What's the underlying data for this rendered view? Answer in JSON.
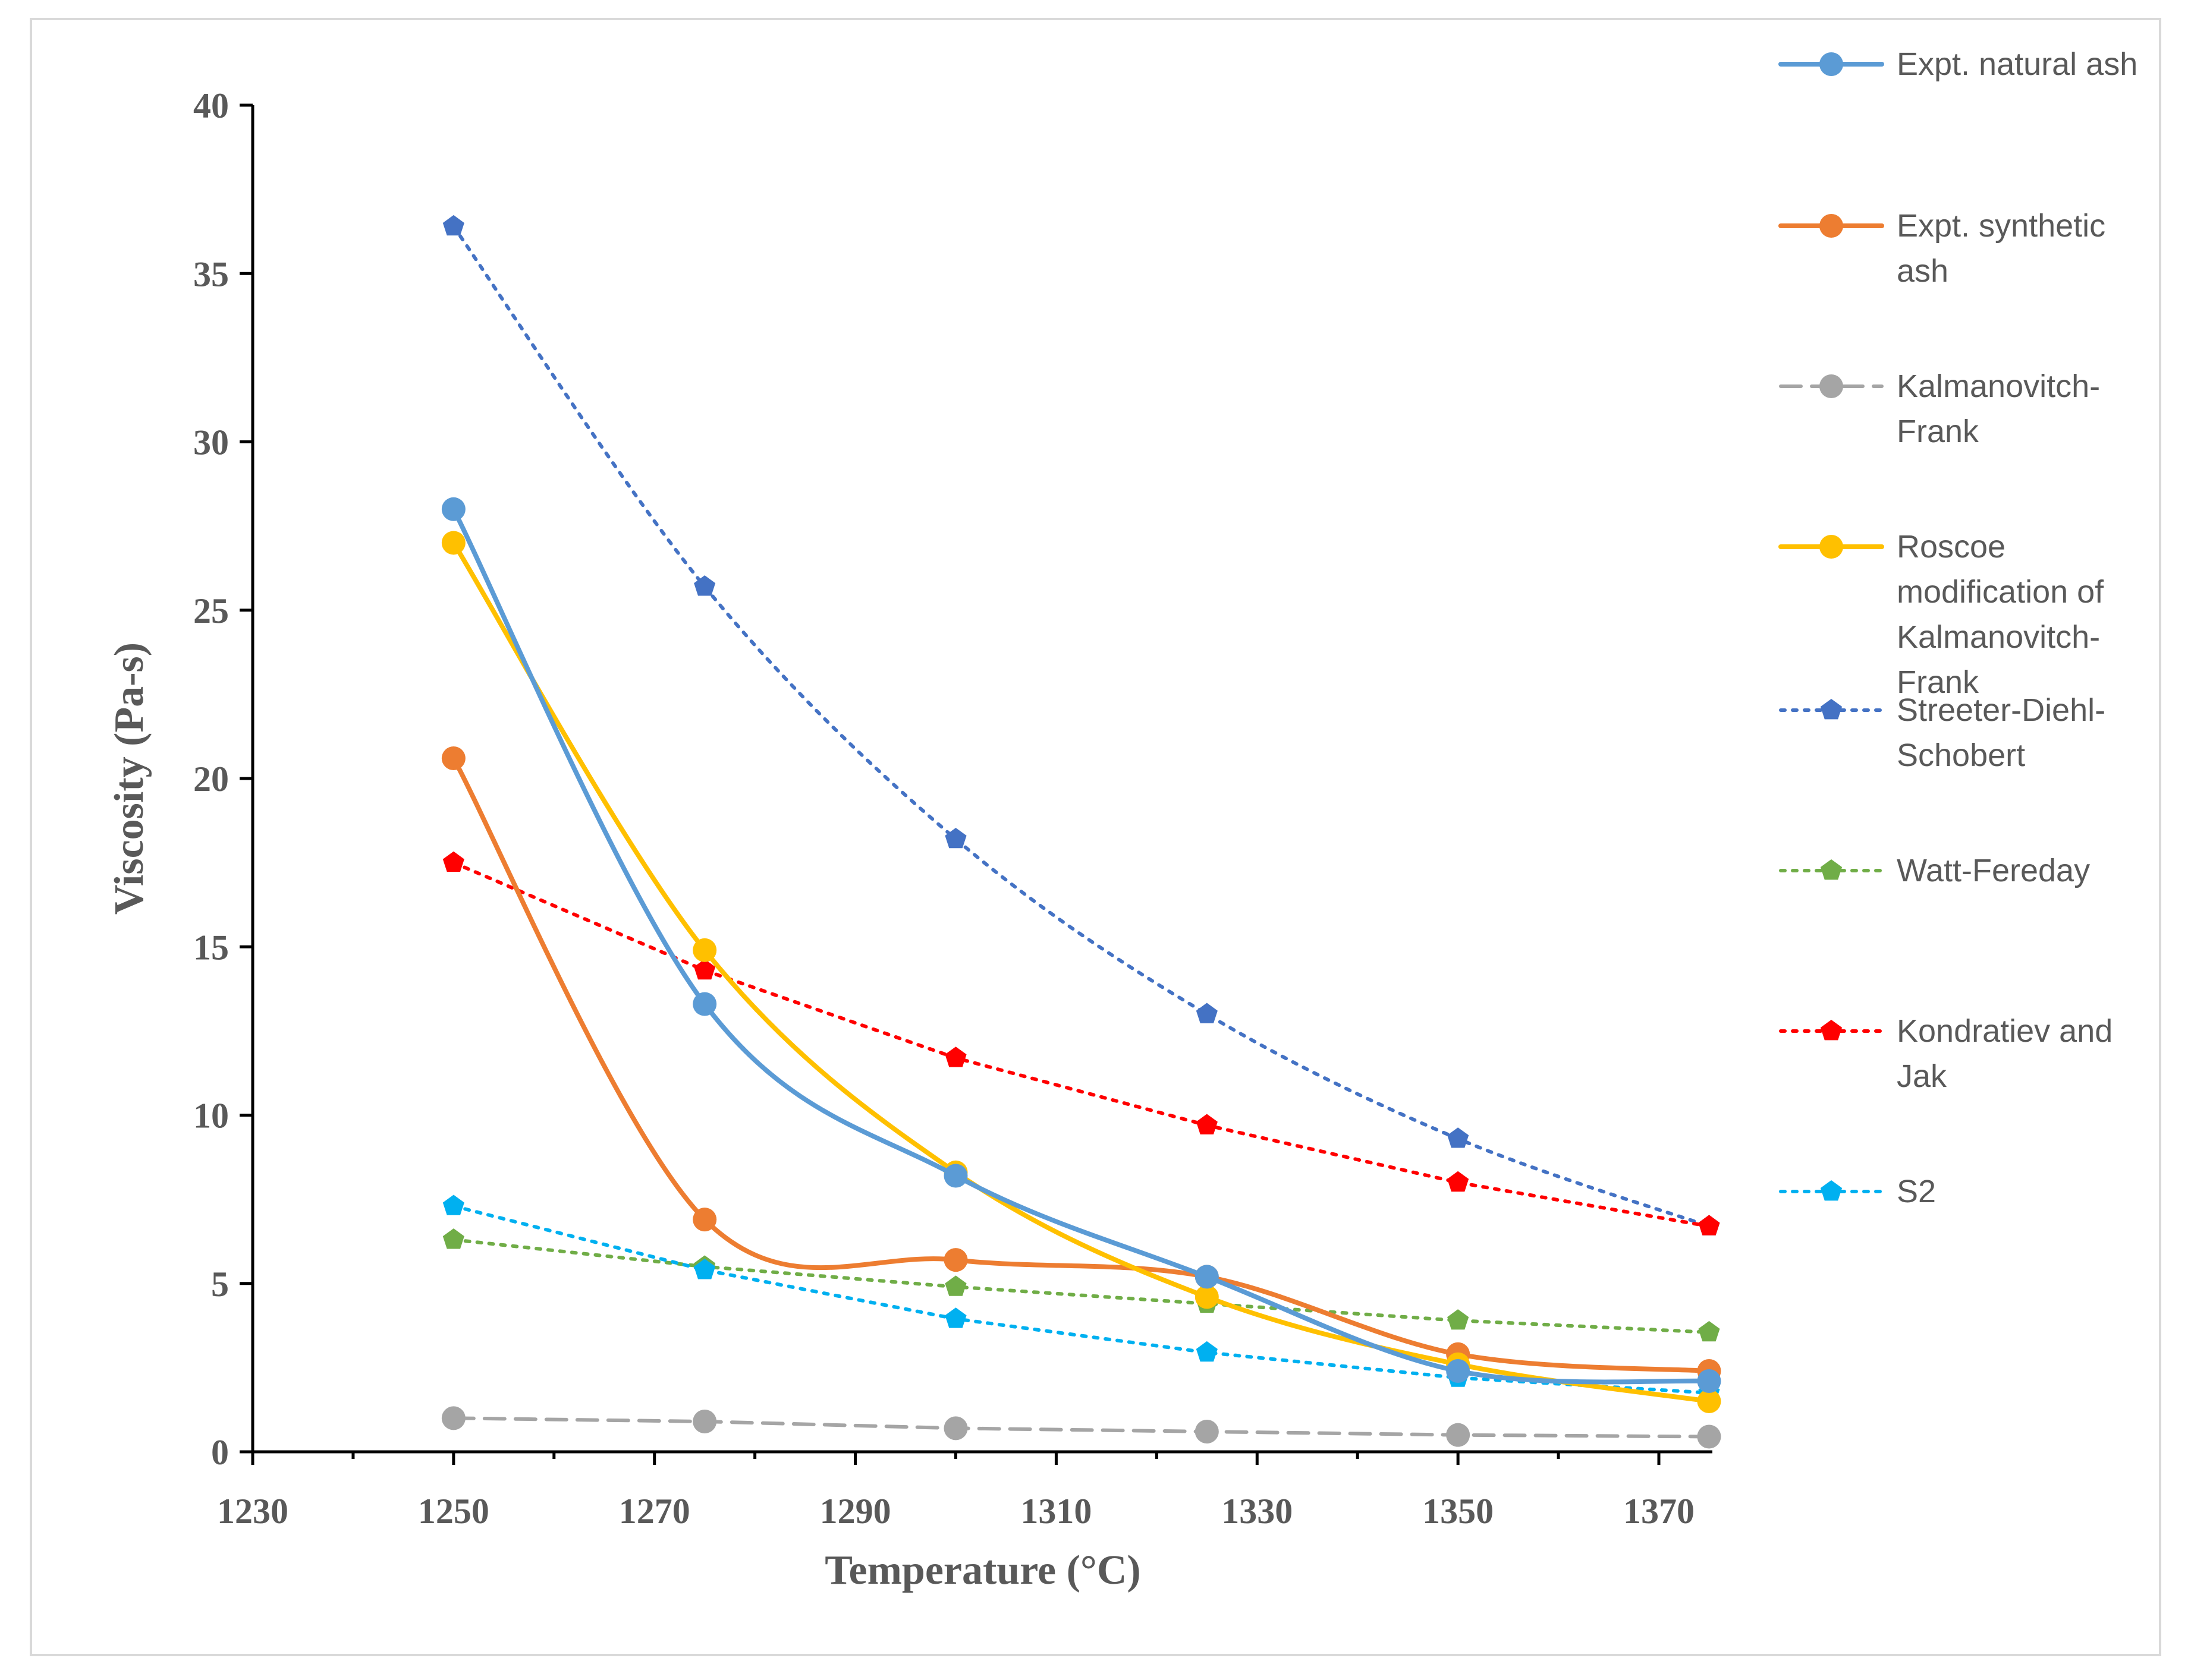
{
  "chart_data": {
    "type": "line",
    "title": "",
    "xlabel": "Temperature (°C)",
    "ylabel": "Viscosity (Pa-s)",
    "xlim": [
      1230,
      1380
    ],
    "ylim": [
      0,
      40
    ],
    "xticks": [
      1230,
      1250,
      1270,
      1290,
      1310,
      1330,
      1350,
      1370
    ],
    "yticks": [
      0,
      5,
      10,
      15,
      20,
      25,
      30,
      35,
      40
    ],
    "x": [
      1250,
      1275,
      1300,
      1325,
      1350,
      1375
    ],
    "grid": false,
    "legend_position": "right",
    "series": [
      {
        "name": "Expt. natural ash",
        "legend_lines": [
          "Expt. natural ash"
        ],
        "values": [
          28.0,
          13.3,
          8.2,
          5.2,
          2.4,
          2.1
        ],
        "color": "#5b9bd5",
        "style": "solid",
        "smooth": true,
        "marker": "circle"
      },
      {
        "name": "Expt. synthetic ash",
        "legend_lines": [
          "Expt. synthetic",
          "ash"
        ],
        "values": [
          20.6,
          6.9,
          5.7,
          5.2,
          2.9,
          2.4
        ],
        "color": "#ed7d31",
        "style": "solid",
        "smooth": true,
        "marker": "circle"
      },
      {
        "name": "Kalmanovitch-Frank",
        "legend_lines": [
          "Kalmanovitch-",
          "Frank"
        ],
        "values": [
          1.0,
          0.9,
          0.7,
          0.6,
          0.5,
          0.45
        ],
        "color": "#a5a5a5",
        "style": "dashed",
        "smooth": false,
        "marker": "circle"
      },
      {
        "name": "Roscoe modification of Kalmanovitch-Frank",
        "legend_lines": [
          "Roscoe",
          "modification of",
          "Kalmanovitch-",
          "Frank"
        ],
        "values": [
          27.0,
          14.9,
          8.3,
          4.6,
          2.6,
          1.5
        ],
        "color": "#ffc000",
        "style": "solid",
        "smooth": true,
        "marker": "circle"
      },
      {
        "name": "Streeter-Diehl-Schobert",
        "legend_lines": [
          "Streeter-Diehl-",
          "Schobert"
        ],
        "values": [
          36.4,
          25.7,
          18.2,
          13.0,
          9.3,
          6.7
        ],
        "color": "#4472c4",
        "style": "dotted",
        "smooth": true,
        "marker": "pentagon"
      },
      {
        "name": "Watt-Fereday",
        "legend_lines": [
          "Watt-Fereday"
        ],
        "values": [
          6.3,
          5.5,
          4.9,
          4.4,
          3.9,
          3.55
        ],
        "color": "#70ad47",
        "style": "dotted",
        "smooth": false,
        "marker": "pentagon"
      },
      {
        "name": "Kondratiev and Jak",
        "legend_lines": [
          "Kondratiev and",
          "Jak"
        ],
        "values": [
          17.5,
          14.3,
          11.7,
          9.7,
          8.0,
          6.7
        ],
        "color": "#ff0000",
        "style": "dotted",
        "smooth": false,
        "marker": "pentagon"
      },
      {
        "name": "S2",
        "legend_lines": [
          "S2"
        ],
        "values": [
          7.3,
          5.4,
          3.95,
          2.95,
          2.2,
          1.75
        ],
        "color": "#00b0f0",
        "style": "dotted",
        "smooth": false,
        "marker": "pentagon"
      }
    ]
  }
}
